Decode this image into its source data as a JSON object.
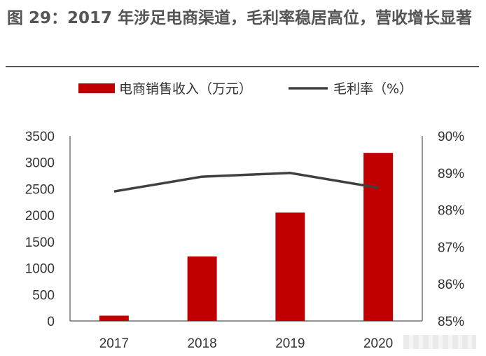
{
  "title": "图 29：2017 年涉足电商渠道，毛利率稳居高位，营收增长显著",
  "chart_data": {
    "type": "bar",
    "categories": [
      "2017",
      "2018",
      "2019",
      "2020"
    ],
    "series": [
      {
        "name": "电商销售收入（万元）",
        "type": "bar",
        "axis": "left",
        "color": "#c00000",
        "values": [
          100,
          1220,
          2050,
          3180
        ]
      },
      {
        "name": "毛利率（%）",
        "type": "line",
        "axis": "right",
        "color": "#404040",
        "values": [
          88.5,
          88.9,
          89.0,
          88.6
        ]
      }
    ],
    "ylim_left": [
      0,
      3500
    ],
    "yticks_left": [
      "0",
      "500",
      "1000",
      "1500",
      "2000",
      "2500",
      "3000",
      "3500"
    ],
    "ylim_right": [
      85,
      90
    ],
    "yticks_right": [
      "85%",
      "86%",
      "87%",
      "88%",
      "89%",
      "90%"
    ],
    "legend_position": "top",
    "grid": false
  }
}
